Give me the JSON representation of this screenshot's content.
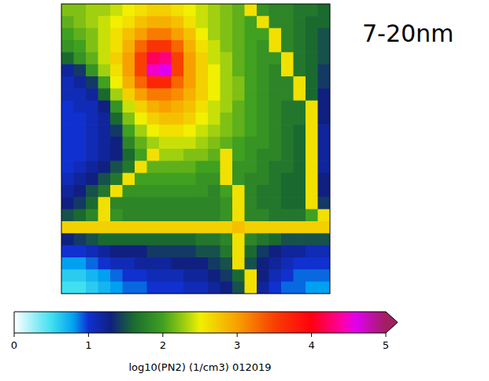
{
  "chart_data": {
    "type": "heatmap",
    "title": "7-20nm",
    "colorbar_label": "log10(PN2) (1/cm3) 012019",
    "colorbar_range": [
      0,
      5
    ],
    "colorbar_ticks": [
      0,
      1,
      2,
      3,
      4,
      5
    ],
    "tick_labels": false,
    "cells": [
      [
        2.2,
        2.2,
        2.3,
        2.3,
        2.4,
        2.5,
        2.6,
        2.7,
        2.7,
        2.6,
        2.5,
        2.4,
        2.3,
        2.2,
        2.1,
        2.6,
        1.9,
        1.8,
        1.8,
        1.7,
        1.7,
        1.6
      ],
      [
        2.1,
        2.2,
        2.3,
        2.4,
        2.5,
        2.6,
        2.8,
        2.9,
        2.9,
        2.8,
        2.6,
        2.4,
        2.3,
        2.2,
        2.1,
        2.0,
        2.6,
        1.8,
        1.8,
        1.7,
        1.6,
        1.6
      ],
      [
        2.0,
        2.1,
        2.2,
        2.4,
        2.6,
        2.8,
        3.0,
        3.2,
        3.2,
        3.0,
        2.8,
        2.5,
        2.3,
        2.2,
        2.1,
        2.0,
        2.0,
        2.6,
        1.8,
        1.7,
        1.6,
        1.5
      ],
      [
        1.9,
        2.0,
        2.2,
        2.4,
        2.6,
        2.9,
        3.3,
        3.6,
        3.6,
        3.3,
        2.9,
        2.6,
        2.4,
        2.2,
        2.1,
        2.0,
        1.9,
        2.6,
        1.8,
        1.7,
        1.6,
        1.5
      ],
      [
        1.6,
        1.9,
        2.1,
        2.4,
        2.7,
        3.0,
        3.5,
        4.2,
        4.3,
        3.5,
        3.0,
        2.7,
        2.4,
        2.3,
        2.1,
        2.0,
        1.9,
        1.9,
        2.6,
        1.7,
        1.6,
        1.5
      ],
      [
        1.2,
        1.4,
        1.9,
        2.3,
        2.6,
        3.0,
        3.5,
        4.5,
        4.6,
        3.5,
        3.0,
        2.7,
        2.5,
        2.3,
        2.1,
        2.0,
        1.9,
        1.8,
        2.6,
        1.7,
        1.6,
        1.4
      ],
      [
        1.1,
        1.2,
        1.4,
        2.0,
        2.5,
        2.9,
        3.3,
        3.7,
        3.7,
        3.3,
        3.0,
        2.7,
        2.5,
        2.3,
        2.2,
        2.0,
        1.9,
        1.8,
        1.8,
        2.6,
        1.6,
        1.4
      ],
      [
        1.1,
        1.1,
        1.2,
        1.6,
        2.3,
        2.7,
        3.0,
        3.2,
        3.2,
        3.1,
        2.9,
        2.7,
        2.5,
        2.3,
        2.2,
        2.0,
        1.9,
        1.8,
        1.8,
        2.6,
        1.6,
        1.3
      ],
      [
        1.0,
        1.1,
        1.1,
        1.3,
        1.9,
        2.4,
        2.7,
        2.9,
        3.0,
        2.9,
        2.8,
        2.6,
        2.4,
        2.3,
        2.1,
        2.0,
        1.9,
        1.8,
        1.7,
        1.7,
        2.6,
        1.3
      ],
      [
        1.0,
        1.0,
        1.1,
        1.2,
        1.6,
        2.2,
        2.5,
        2.7,
        2.8,
        2.8,
        2.7,
        2.5,
        2.4,
        2.2,
        2.1,
        2.0,
        1.9,
        1.8,
        1.7,
        1.7,
        2.6,
        1.3
      ],
      [
        1.0,
        1.0,
        1.1,
        1.2,
        1.4,
        2.0,
        2.3,
        2.5,
        2.6,
        2.6,
        2.5,
        2.4,
        2.3,
        2.2,
        2.1,
        2.0,
        1.9,
        1.8,
        1.7,
        1.6,
        2.6,
        1.2
      ],
      [
        1.0,
        1.0,
        1.1,
        1.2,
        1.3,
        1.8,
        2.1,
        2.3,
        2.4,
        2.4,
        2.4,
        2.3,
        2.2,
        2.1,
        2.0,
        1.9,
        1.9,
        1.8,
        1.7,
        1.6,
        2.6,
        1.2
      ],
      [
        1.0,
        1.0,
        1.1,
        1.2,
        1.3,
        1.6,
        2.0,
        2.6,
        2.3,
        2.3,
        2.2,
        2.2,
        2.1,
        2.6,
        2.0,
        1.9,
        1.8,
        1.8,
        1.7,
        1.6,
        2.6,
        1.2
      ],
      [
        1.0,
        1.1,
        1.2,
        1.3,
        1.5,
        1.7,
        2.6,
        2.1,
        2.1,
        2.1,
        2.1,
        2.0,
        2.0,
        2.6,
        1.9,
        1.9,
        1.8,
        1.7,
        1.7,
        1.6,
        2.6,
        1.2
      ],
      [
        1.1,
        1.2,
        1.3,
        1.5,
        1.7,
        2.6,
        2.0,
        2.0,
        2.0,
        2.0,
        2.0,
        1.9,
        1.9,
        2.6,
        1.9,
        1.8,
        1.8,
        1.7,
        1.6,
        1.6,
        2.6,
        1.3
      ],
      [
        1.2,
        1.3,
        1.5,
        1.7,
        2.6,
        1.9,
        1.9,
        1.9,
        1.9,
        1.9,
        1.9,
        1.9,
        1.8,
        2.0,
        2.6,
        1.8,
        1.7,
        1.7,
        1.6,
        1.6,
        2.6,
        1.3
      ],
      [
        1.3,
        1.4,
        1.6,
        2.6,
        1.8,
        1.8,
        1.8,
        1.8,
        1.8,
        1.8,
        1.8,
        1.8,
        1.8,
        1.9,
        2.6,
        1.8,
        1.7,
        1.7,
        1.6,
        1.6,
        2.6,
        1.4
      ],
      [
        1.5,
        1.6,
        1.8,
        2.6,
        1.9,
        1.8,
        1.8,
        1.8,
        1.8,
        1.8,
        1.8,
        1.8,
        1.8,
        1.9,
        2.6,
        1.8,
        1.8,
        1.7,
        1.7,
        1.7,
        2.0,
        2.6
      ],
      [
        2.7,
        2.7,
        2.7,
        2.7,
        2.7,
        2.7,
        2.7,
        2.7,
        2.7,
        2.7,
        2.7,
        2.7,
        2.7,
        2.7,
        2.8,
        2.7,
        2.7,
        2.7,
        2.7,
        2.7,
        2.7,
        2.7
      ],
      [
        1.3,
        1.4,
        1.5,
        1.6,
        1.6,
        1.6,
        1.6,
        1.6,
        1.6,
        1.6,
        1.6,
        1.7,
        1.7,
        1.8,
        2.6,
        1.8,
        1.7,
        1.6,
        1.5,
        1.5,
        1.5,
        1.5
      ],
      [
        1.0,
        1.0,
        1.1,
        1.2,
        1.3,
        1.3,
        1.3,
        1.4,
        1.4,
        1.4,
        1.4,
        1.5,
        1.5,
        1.7,
        2.6,
        1.6,
        1.4,
        1.3,
        1.2,
        1.2,
        1.1,
        1.1
      ],
      [
        0.8,
        0.8,
        0.9,
        1.0,
        1.1,
        1.1,
        1.2,
        1.2,
        1.2,
        1.3,
        1.3,
        1.3,
        1.4,
        1.5,
        2.6,
        1.5,
        1.3,
        1.2,
        1.1,
        1.0,
        1.0,
        1.0
      ],
      [
        0.6,
        0.6,
        0.7,
        0.8,
        0.9,
        1.0,
        1.0,
        1.1,
        1.1,
        1.1,
        1.2,
        1.2,
        1.3,
        1.4,
        1.6,
        2.6,
        1.3,
        1.1,
        1.0,
        0.9,
        0.9,
        0.9
      ],
      [
        0.5,
        0.5,
        0.6,
        0.7,
        0.8,
        0.9,
        0.9,
        1.0,
        1.0,
        1.0,
        1.1,
        1.1,
        1.2,
        1.3,
        1.5,
        2.6,
        1.2,
        1.0,
        0.9,
        0.9,
        0.8,
        0.8
      ]
    ]
  }
}
